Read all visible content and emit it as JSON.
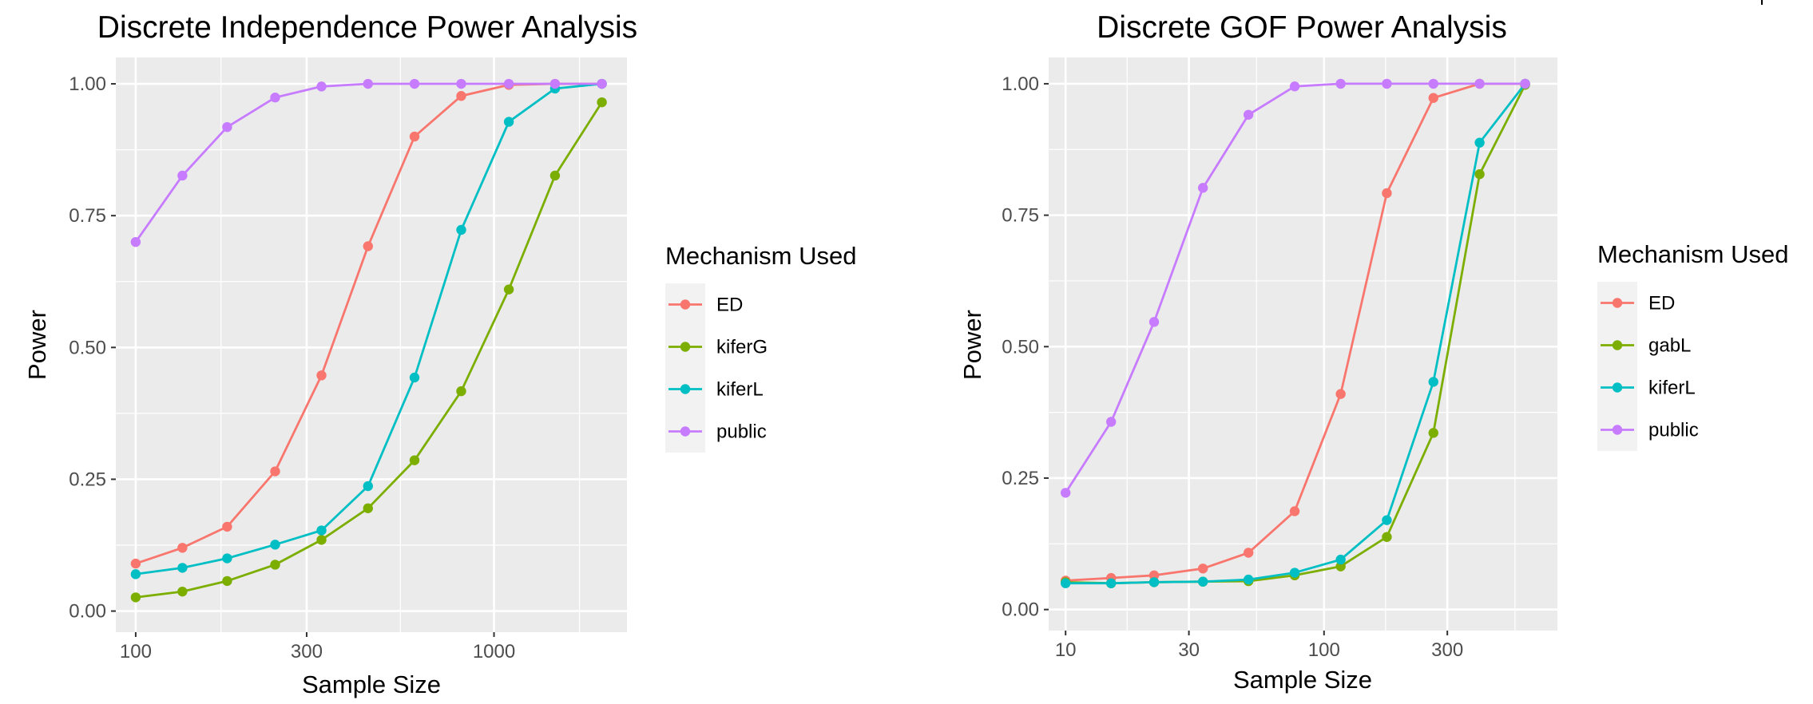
{
  "chart_data": [
    {
      "type": "line",
      "title": "Discrete Independence Power Analysis",
      "xlabel": "Sample Size",
      "ylabel": "Power",
      "x_scale": "log10",
      "xlim": [
        88,
        2350
      ],
      "ylim": [
        -0.04,
        1.05
      ],
      "x_ticks": [
        100,
        300,
        1000
      ],
      "x_tick_labels": [
        "100",
        "300",
        "1000"
      ],
      "x_minor_ticks": [
        173,
        548,
        1732
      ],
      "y_ticks": [
        0,
        0.25,
        0.5,
        0.75,
        1
      ],
      "y_tick_labels": [
        "0.00",
        "0.25",
        "0.50",
        "0.75",
        "1.00"
      ],
      "y_minor_ticks": [
        0.125,
        0.375,
        0.625,
        0.875
      ],
      "grid": true,
      "legend_title": "Mechanism Used",
      "legend_position": "right",
      "x": [
        100,
        135,
        180,
        245,
        330,
        445,
        600,
        810,
        1100,
        1480,
        2000
      ],
      "series": [
        {
          "name": "ED",
          "color": "#F8766D",
          "values": [
            0.09,
            0.12,
            0.16,
            0.265,
            0.447,
            0.692,
            0.9,
            0.977,
            0.998,
            1.0,
            1.0
          ]
        },
        {
          "name": "kiferG",
          "color": "#7CAE00",
          "values": [
            0.026,
            0.037,
            0.057,
            0.088,
            0.135,
            0.195,
            0.286,
            0.417,
            0.61,
            0.826,
            0.965
          ]
        },
        {
          "name": "kiferL",
          "color": "#00BFC4",
          "values": [
            0.07,
            0.082,
            0.1,
            0.126,
            0.153,
            0.237,
            0.443,
            0.723,
            0.928,
            0.991,
            1.0
          ]
        },
        {
          "name": "public",
          "color": "#C77CFF",
          "values": [
            0.7,
            0.826,
            0.918,
            0.974,
            0.995,
            1.0,
            1.0,
            1.0,
            1.0,
            1.0,
            1.0
          ]
        }
      ]
    },
    {
      "type": "line",
      "title": "Discrete GOF Power Analysis",
      "xlabel": "Sample Size",
      "ylabel": "Power",
      "x_scale": "log10",
      "xlim": [
        8.6,
        800
      ],
      "ylim": [
        -0.04,
        1.05
      ],
      "x_ticks": [
        10,
        30,
        100,
        300
      ],
      "x_tick_labels": [
        "10",
        "30",
        "100",
        "300"
      ],
      "x_minor_ticks": [
        17.3,
        54.8,
        173,
        548
      ],
      "y_ticks": [
        0,
        0.25,
        0.5,
        0.75,
        1
      ],
      "y_tick_labels": [
        "0.00",
        "0.25",
        "0.50",
        "0.75",
        "1.00"
      ],
      "y_minor_ticks": [
        0.125,
        0.375,
        0.625,
        0.875
      ],
      "grid": true,
      "legend_title": "Mechanism Used",
      "legend_position": "right",
      "x": [
        10,
        15,
        22,
        34,
        51,
        77,
        116,
        175,
        265,
        400,
        600
      ],
      "series": [
        {
          "name": "ED",
          "color": "#F8766D",
          "values": [
            0.055,
            0.06,
            0.065,
            0.078,
            0.108,
            0.187,
            0.41,
            0.792,
            0.973,
            1.0,
            1.0
          ]
        },
        {
          "name": "gabL",
          "color": "#7CAE00",
          "values": [
            0.052,
            0.05,
            0.052,
            0.053,
            0.054,
            0.065,
            0.082,
            0.138,
            0.336,
            0.828,
            0.998
          ]
        },
        {
          "name": "kiferL",
          "color": "#00BFC4",
          "values": [
            0.05,
            0.05,
            0.052,
            0.053,
            0.057,
            0.07,
            0.095,
            0.17,
            0.433,
            0.888,
            1.0
          ]
        },
        {
          "name": "public",
          "color": "#C77CFF",
          "values": [
            0.222,
            0.357,
            0.547,
            0.802,
            0.941,
            0.995,
            1.0,
            1.0,
            1.0,
            1.0,
            1.0
          ]
        }
      ]
    }
  ]
}
